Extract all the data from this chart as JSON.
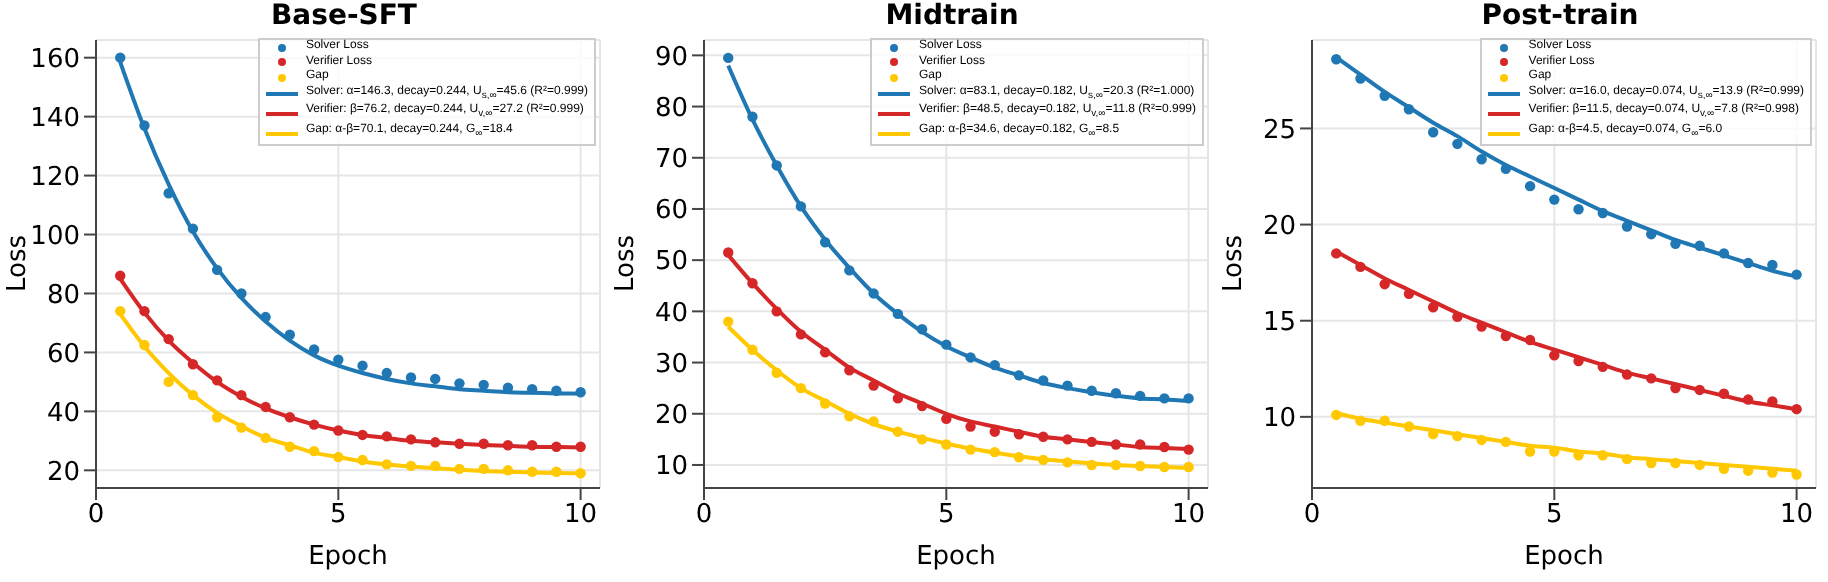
{
  "chart_data": [
    {
      "type": "line",
      "title": "Base-SFT",
      "xlabel": "Epoch",
      "ylabel": "Loss",
      "x": [
        0.5,
        1,
        1.5,
        2,
        2.5,
        3,
        3.5,
        4,
        4.5,
        5,
        5.5,
        6,
        6.5,
        7,
        7.5,
        8,
        8.5,
        9,
        9.5,
        10
      ],
      "xlim": [
        0,
        10.4
      ],
      "xticks": [
        0,
        5,
        10
      ],
      "ylim": [
        14,
        166
      ],
      "yticks": [
        20,
        40,
        60,
        80,
        100,
        120,
        140,
        160
      ],
      "grid": true,
      "legend": "top right",
      "series": [
        {
          "type": "scatter",
          "marker": "circle",
          "name": "Solver Loss",
          "color": "#1f77b4",
          "values": [
            160,
            137,
            114,
            102,
            88,
            80,
            72,
            66,
            61,
            57.5,
            55.5,
            53,
            51.5,
            51,
            49.5,
            49,
            48,
            47.5,
            47,
            46.5
          ]
        },
        {
          "type": "scatter",
          "marker": "circle",
          "name": "Verifier Loss",
          "color": "#d62728",
          "values": [
            86,
            74,
            64.5,
            56,
            50.5,
            45.5,
            41.5,
            38,
            35.5,
            33.5,
            32,
            31.5,
            30.5,
            29.5,
            29,
            29,
            28.5,
            28.5,
            28,
            28
          ]
        },
        {
          "type": "scatter",
          "marker": "circle",
          "name": "Gap",
          "color": "#ffc800",
          "values": [
            74,
            62.5,
            50,
            45.5,
            38,
            34.5,
            31,
            28,
            26.5,
            24.5,
            23.5,
            22,
            21.5,
            21.5,
            20.5,
            20.5,
            20,
            19.5,
            19.5,
            19
          ]
        },
        {
          "type": "line",
          "name": "Solver: α=146.3, decay=0.244, U$_{s,∞}$=45.6 (R²=0.999)",
          "color": "#1f77b4",
          "values": [
            158.5,
            136,
            117,
            101,
            88.5,
            78.5,
            70.5,
            64,
            59,
            55.5,
            53,
            51,
            49.5,
            48.5,
            47.5,
            47,
            46.5,
            46.3,
            46.1,
            46
          ]
        },
        {
          "type": "line",
          "name": "Verifier: β=76.2, decay=0.244, U$_{v,∞}$=27.2 (R²=0.999)",
          "color": "#d62728",
          "values": [
            85,
            73.5,
            64,
            56.5,
            50,
            45,
            41,
            38,
            35.5,
            33.5,
            32,
            31,
            30,
            29.5,
            29,
            28.6,
            28.3,
            28,
            27.9,
            27.7
          ]
        },
        {
          "type": "line",
          "name": "Gap: α-β=70.1, decay=0.244, G$_{∞}$=18.4",
          "color": "#ffc800",
          "values": [
            73,
            62,
            53,
            45.5,
            39.5,
            35,
            31,
            28.5,
            26,
            24.5,
            23,
            22,
            21.3,
            20.7,
            20.2,
            19.8,
            19.5,
            19.3,
            19.1,
            19
          ]
        }
      ]
    },
    {
      "type": "line",
      "title": "Midtrain",
      "xlabel": "Epoch",
      "ylabel": "Loss",
      "x": [
        0.5,
        1,
        1.5,
        2,
        2.5,
        3,
        3.5,
        4,
        4.5,
        5,
        5.5,
        6,
        6.5,
        7,
        7.5,
        8,
        8.5,
        9,
        9.5,
        10
      ],
      "xlim": [
        0,
        10.4
      ],
      "xticks": [
        0,
        5,
        10
      ],
      "ylim": [
        5.5,
        93
      ],
      "yticks": [
        10,
        20,
        30,
        40,
        50,
        60,
        70,
        80,
        90
      ],
      "grid": true,
      "legend": "top right",
      "series": [
        {
          "type": "scatter",
          "marker": "circle",
          "name": "Solver Loss",
          "color": "#1f77b4",
          "values": [
            89.5,
            78,
            68.5,
            60.5,
            53.5,
            48,
            43.5,
            39.5,
            36.5,
            33.5,
            31,
            29.5,
            27.5,
            26.5,
            25.5,
            24.5,
            24,
            23.5,
            23,
            23
          ]
        },
        {
          "type": "scatter",
          "marker": "circle",
          "name": "Verifier Loss",
          "color": "#d62728",
          "values": [
            51.5,
            45.5,
            40,
            35.5,
            32,
            28.5,
            25.5,
            23,
            21.5,
            19,
            17.5,
            16.5,
            16,
            15.5,
            15,
            14.5,
            14,
            14,
            13.5,
            13
          ]
        },
        {
          "type": "scatter",
          "marker": "circle",
          "name": "Gap",
          "color": "#ffc800",
          "values": [
            38,
            32.5,
            28,
            25,
            22,
            19.5,
            18.5,
            16.5,
            15,
            14,
            13,
            12.5,
            11.5,
            11,
            10.5,
            10,
            10,
            9.8,
            9.6,
            9.6
          ]
        },
        {
          "type": "line",
          "name": "Solver: α=83.1, decay=0.182, U$_{s,∞}$=20.3 (R²=1.000)",
          "color": "#1f77b4",
          "values": [
            88,
            77.5,
            68.5,
            60.5,
            54,
            48.5,
            43.5,
            39.5,
            36,
            33.2,
            31,
            29,
            27.5,
            26,
            25,
            24.2,
            23.5,
            23,
            22.8,
            22.5
          ]
        },
        {
          "type": "line",
          "name": "Verifier: β=48.5, decay=0.182, U$_{v,∞}$=11.8 (R²=0.999)",
          "color": "#d62728",
          "values": [
            51,
            45.5,
            40.5,
            36,
            32.5,
            29,
            26.5,
            24,
            22,
            20,
            18.5,
            17.5,
            16.5,
            15.5,
            15,
            14.5,
            14,
            13.5,
            13.3,
            13.1
          ]
        },
        {
          "type": "line",
          "name": "Gap: α-β=34.6, decay=0.182, G$_{∞}$=8.5",
          "color": "#ffc800",
          "values": [
            37,
            32.5,
            28.5,
            25,
            22.5,
            20,
            18,
            16.5,
            15.3,
            14.2,
            13.2,
            12.4,
            11.7,
            11.1,
            10.7,
            10.3,
            10,
            9.8,
            9.6,
            9.4
          ]
        }
      ]
    },
    {
      "type": "line",
      "title": "Post-train",
      "xlabel": "Epoch",
      "ylabel": "Loss",
      "x": [
        0.5,
        1,
        1.5,
        2,
        2.5,
        3,
        3.5,
        4,
        4.5,
        5,
        5.5,
        6,
        6.5,
        7,
        7.5,
        8,
        8.5,
        9,
        9.5,
        10
      ],
      "xlim": [
        0,
        10.4
      ],
      "xticks": [
        0,
        5,
        10
      ],
      "ylim": [
        6.3,
        29.6
      ],
      "yticks": [
        10,
        15,
        20,
        25
      ],
      "grid": true,
      "legend": "top right",
      "series": [
        {
          "type": "scatter",
          "marker": "circle",
          "name": "Solver Loss",
          "color": "#1f77b4",
          "values": [
            28.6,
            27.6,
            26.7,
            26,
            24.8,
            24.2,
            23.4,
            22.9,
            22,
            21.3,
            20.8,
            20.6,
            19.9,
            19.5,
            19,
            18.9,
            18.5,
            18,
            17.9,
            17.4
          ]
        },
        {
          "type": "scatter",
          "marker": "circle",
          "name": "Verifier Loss",
          "color": "#d62728",
          "values": [
            18.5,
            17.8,
            16.9,
            16.4,
            15.7,
            15.2,
            14.7,
            14.2,
            14,
            13.2,
            12.9,
            12.6,
            12.2,
            12,
            11.5,
            11.4,
            11.2,
            10.9,
            10.8,
            10.4
          ]
        },
        {
          "type": "scatter",
          "marker": "circle",
          "name": "Gap",
          "color": "#ffc800",
          "values": [
            10.1,
            9.8,
            9.8,
            9.5,
            9.1,
            9,
            8.8,
            8.7,
            8.2,
            8.2,
            8,
            8,
            7.8,
            7.6,
            7.6,
            7.5,
            7.3,
            7.2,
            7.1,
            7
          ]
        },
        {
          "type": "line",
          "name": "Solver: α=16.0, decay=0.074, U$_{s,∞}$=13.9 (R²=0.999)",
          "color": "#1f77b4",
          "values": [
            28.7,
            27.8,
            26.9,
            26.1,
            25.3,
            24.6,
            23.8,
            23.1,
            22.5,
            21.9,
            21.3,
            20.7,
            20.2,
            19.7,
            19.2,
            18.8,
            18.4,
            18,
            17.6,
            17.3
          ]
        },
        {
          "type": "line",
          "name": "Verifier: β=11.5, decay=0.074, U$_{v,∞}$=7.8 (R²=0.998)",
          "color": "#d62728",
          "values": [
            18.6,
            17.9,
            17.2,
            16.6,
            16,
            15.4,
            14.9,
            14.4,
            13.9,
            13.5,
            13.1,
            12.7,
            12.3,
            12,
            11.7,
            11.4,
            11.1,
            10.8,
            10.6,
            10.4
          ]
        },
        {
          "type": "line",
          "name": "Gap: α-β=4.5, decay=0.074, G$_{∞}$=6.0",
          "color": "#ffc800",
          "values": [
            10.2,
            9.9,
            9.7,
            9.5,
            9.3,
            9.1,
            8.9,
            8.7,
            8.5,
            8.4,
            8.2,
            8.1,
            7.9,
            7.8,
            7.7,
            7.6,
            7.5,
            7.4,
            7.3,
            7.2
          ]
        }
      ]
    }
  ]
}
